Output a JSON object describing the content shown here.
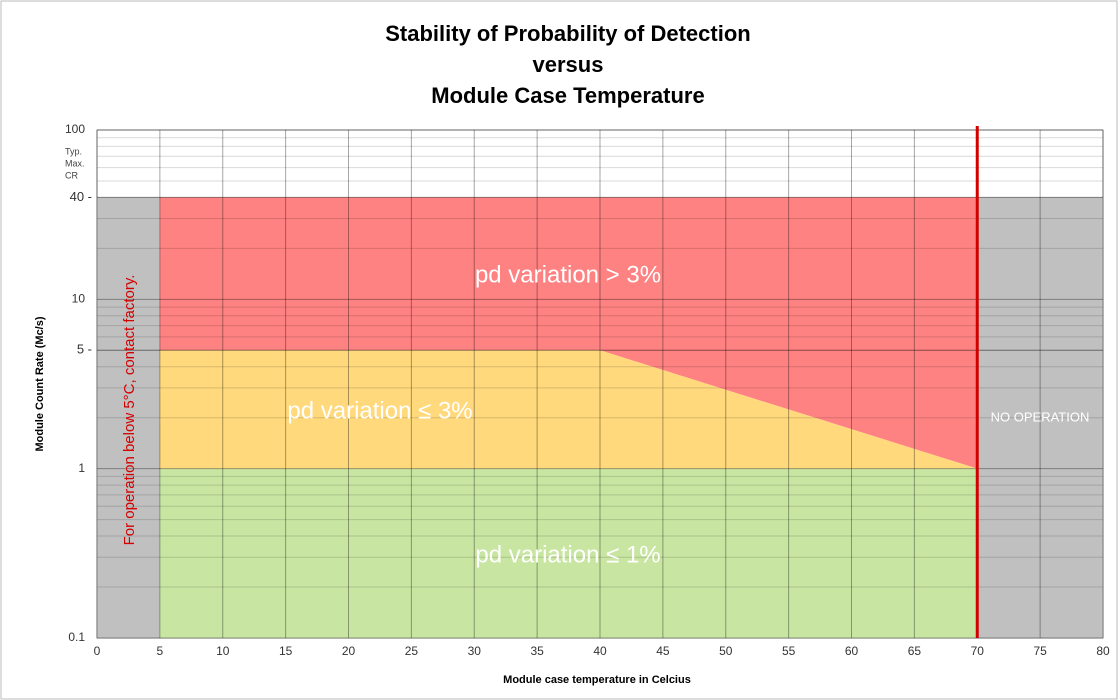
{
  "chart_data": {
    "type": "region",
    "title": [
      "Stability of Probability of Detection",
      "versus",
      "Module Case Temperature"
    ],
    "x_label": "Module case temperature in Celcius",
    "y_label": "Module Count Rate (Mc/s)",
    "xlim": [
      0,
      80
    ],
    "xticks": [
      0,
      5,
      10,
      15,
      20,
      25,
      30,
      35,
      40,
      45,
      50,
      55,
      60,
      65,
      70,
      75,
      80
    ],
    "ylim": [
      0.1,
      100
    ],
    "log_y": true,
    "yticks": [
      0.1,
      1,
      {
        "value": 5,
        "label": "5 -"
      },
      10,
      {
        "value": 40,
        "label": "40 -"
      },
      100
    ],
    "grid": true,
    "annotation": [
      "Typ.",
      "Max.",
      "CR"
    ],
    "regions": [
      {
        "label": "For operation below 5°C, contact factory.",
        "color": "#c0c0c0",
        "x": [
          0,
          5,
          5,
          0
        ],
        "y": [
          0.1,
          0.1,
          40,
          40
        ]
      },
      {
        "label": "pd variation > 3%",
        "color": "#ff8282",
        "x": [
          5,
          70,
          70,
          40,
          5
        ],
        "y": [
          40,
          40,
          1,
          5,
          5
        ]
      },
      {
        "label": "pd variation ≤ 3%",
        "color": "#ffd97c",
        "x": [
          5,
          40,
          70,
          5
        ],
        "y": [
          5,
          5,
          1,
          1
        ]
      },
      {
        "label": "pd variation ≤ 1%",
        "color": "#c8e6a2",
        "x": [
          5,
          70,
          70,
          5
        ],
        "y": [
          1,
          1,
          0.1,
          0.1
        ]
      },
      {
        "label": "NO OPERATION",
        "color": "#c0c0c0",
        "x": [
          70,
          80,
          80,
          70
        ],
        "y": [
          0.1,
          0.1,
          40,
          40
        ]
      }
    ],
    "vline": {
      "x": 70,
      "color": "#d40000"
    }
  }
}
